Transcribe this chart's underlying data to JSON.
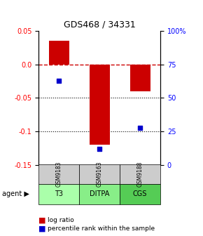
{
  "title": "GDS468 / 34331",
  "samples": [
    "GSM9183",
    "GSM9163",
    "GSM9188"
  ],
  "agents": [
    "T3",
    "DITPA",
    "CGS"
  ],
  "log_ratios": [
    0.035,
    -0.12,
    -0.04
  ],
  "percentile_ranks": [
    0.63,
    0.12,
    0.28
  ],
  "bar_color": "#cc0000",
  "dot_color": "#0000cc",
  "ylim_left": [
    -0.15,
    0.05
  ],
  "ylim_right": [
    0.0,
    1.0
  ],
  "yticks_left": [
    0.05,
    0.0,
    -0.05,
    -0.1,
    -0.15
  ],
  "yticks_right": [
    1.0,
    0.75,
    0.5,
    0.25,
    0.0
  ],
  "ytick_right_labels": [
    "100%",
    "75",
    "50",
    "25",
    "0"
  ],
  "dotted_lines": [
    -0.05,
    -0.1
  ],
  "agent_colors": [
    "#aaffaa",
    "#88ee88",
    "#55cc55"
  ],
  "sample_bg": "#cccccc",
  "legend_log_ratio": "log ratio",
  "legend_percentile": "percentile rank within the sample"
}
